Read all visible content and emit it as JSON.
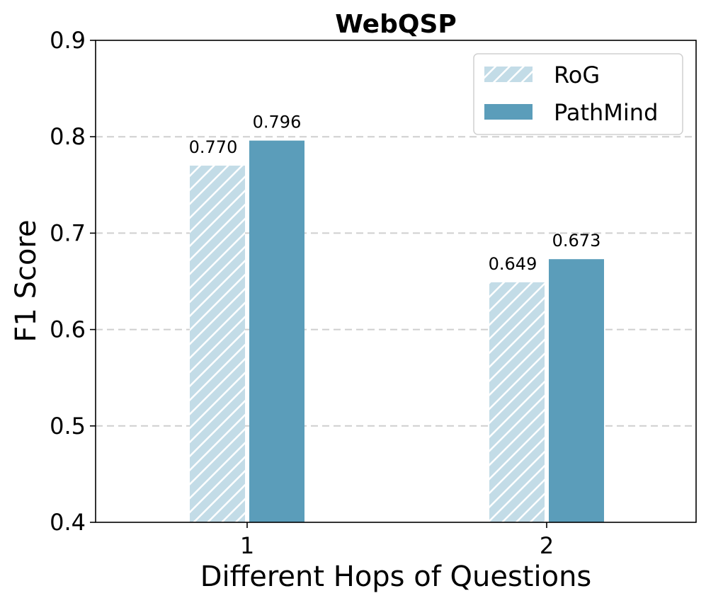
{
  "chart_data": {
    "type": "bar",
    "title": "WebQSP",
    "xlabel": "Different Hops of Questions",
    "ylabel": "F1 Score",
    "categories": [
      "1",
      "2"
    ],
    "series": [
      {
        "name": "RoG",
        "values": [
          0.77,
          0.649
        ],
        "labels": [
          "0.770",
          "0.649"
        ],
        "color": "#c3dce7",
        "pattern": "diagonal-hatch"
      },
      {
        "name": "PathMind",
        "values": [
          0.796,
          0.673
        ],
        "labels": [
          "0.796",
          "0.673"
        ],
        "color": "#5b9dba",
        "pattern": "solid"
      }
    ],
    "ylim": [
      0.4,
      0.9
    ],
    "yticks": [
      "0.4",
      "0.5",
      "0.6",
      "0.7",
      "0.8",
      "0.9"
    ],
    "grid": "horizontal-dashed",
    "legend_position": "top-right"
  }
}
